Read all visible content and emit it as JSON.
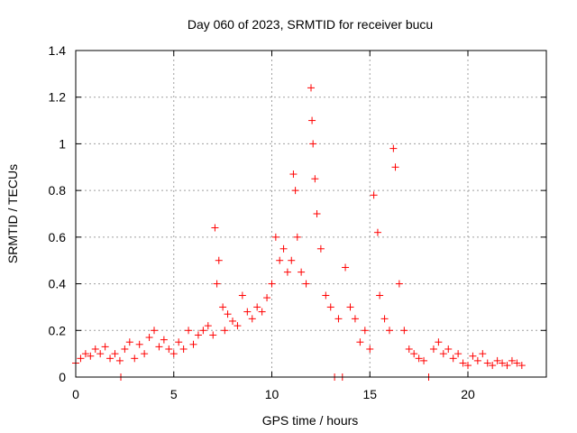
{
  "chart_data": {
    "type": "scatter",
    "title": "Day 060 of 2023, SRMTID for receiver bucu",
    "xlabel": "GPS time / hours",
    "ylabel": "SRMTID / TECUs",
    "xlim": [
      0,
      24
    ],
    "ylim": [
      0,
      1.4
    ],
    "xticks": [
      0,
      5,
      10,
      15,
      20
    ],
    "xtick_labels": [
      "0",
      "5",
      "10",
      "15",
      "20"
    ],
    "yticks": [
      0,
      0.2,
      0.4,
      0.6,
      0.8,
      1,
      1.2,
      1.4
    ],
    "ytick_labels": [
      "0",
      "0.2",
      "0.4",
      "0.6",
      "0.8",
      "1",
      "1.2",
      "1.4"
    ],
    "grid": true,
    "marker": "plus",
    "colors": {
      "points": "#ff0000",
      "grid": "#a0a0a0",
      "axis": "#000000"
    },
    "series": [
      {
        "name": "SRMTID",
        "x": [
          0.0,
          0.25,
          0.5,
          0.75,
          1.0,
          1.25,
          1.5,
          1.75,
          2.0,
          2.25,
          2.3,
          2.5,
          2.75,
          3.0,
          3.25,
          3.5,
          3.75,
          4.0,
          4.25,
          4.5,
          4.75,
          5.0,
          5.25,
          5.5,
          5.75,
          6.0,
          6.25,
          6.5,
          6.75,
          7.0,
          7.1,
          7.2,
          7.3,
          7.5,
          7.6,
          7.75,
          8.0,
          8.25,
          8.5,
          8.75,
          9.0,
          9.25,
          9.5,
          9.75,
          10.0,
          10.2,
          10.4,
          10.6,
          10.8,
          11.0,
          11.1,
          11.2,
          11.3,
          11.5,
          11.75,
          12.0,
          12.05,
          12.1,
          12.2,
          12.3,
          12.5,
          12.75,
          13.0,
          13.2,
          13.4,
          13.6,
          13.75,
          14.0,
          14.25,
          14.5,
          14.75,
          15.0,
          15.2,
          15.4,
          15.5,
          15.75,
          16.0,
          16.2,
          16.3,
          16.5,
          16.75,
          17.0,
          17.25,
          17.5,
          17.75,
          18.0,
          18.25,
          18.5,
          18.75,
          19.0,
          19.25,
          19.5,
          19.75,
          20.0,
          20.25,
          20.5,
          20.75,
          21.0,
          21.25,
          21.5,
          21.75,
          22.0,
          22.25,
          22.5,
          22.75
        ],
        "y": [
          0.06,
          0.08,
          0.1,
          0.09,
          0.12,
          0.1,
          0.13,
          0.08,
          0.1,
          0.07,
          0.0,
          0.12,
          0.15,
          0.08,
          0.14,
          0.1,
          0.17,
          0.2,
          0.13,
          0.16,
          0.12,
          0.1,
          0.15,
          0.12,
          0.2,
          0.14,
          0.18,
          0.2,
          0.22,
          0.18,
          0.64,
          0.4,
          0.5,
          0.3,
          0.2,
          0.27,
          0.24,
          0.22,
          0.35,
          0.28,
          0.25,
          0.3,
          0.28,
          0.34,
          0.4,
          0.6,
          0.5,
          0.55,
          0.45,
          0.5,
          0.87,
          0.8,
          0.6,
          0.45,
          0.4,
          1.24,
          1.1,
          1.0,
          0.85,
          0.7,
          0.55,
          0.35,
          0.3,
          0.0,
          0.25,
          0.0,
          0.47,
          0.3,
          0.25,
          0.15,
          0.2,
          0.12,
          0.78,
          0.62,
          0.35,
          0.25,
          0.2,
          0.98,
          0.9,
          0.4,
          0.2,
          0.12,
          0.1,
          0.08,
          0.07,
          0.0,
          0.12,
          0.15,
          0.1,
          0.12,
          0.08,
          0.1,
          0.06,
          0.05,
          0.09,
          0.07,
          0.1,
          0.06,
          0.05,
          0.07,
          0.06,
          0.05,
          0.07,
          0.06,
          0.05
        ]
      }
    ]
  }
}
